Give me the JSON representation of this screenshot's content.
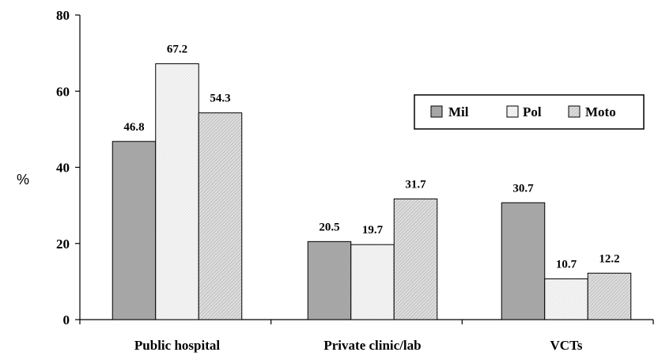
{
  "chart_data": {
    "type": "bar",
    "title": "",
    "xlabel": "",
    "ylabel": "%",
    "ylim": [
      0,
      80
    ],
    "yticks": [
      0,
      20,
      40,
      60,
      80
    ],
    "grid": false,
    "legend_position": "top-right",
    "categories": [
      "Public hospital",
      "Private clinic/lab",
      "VCTs"
    ],
    "series": [
      {
        "name": "Mil",
        "values": [
          46.8,
          20.5,
          30.7
        ],
        "color": "#a6a6a6",
        "pattern": "solid-gray"
      },
      {
        "name": "Pol",
        "values": [
          67.2,
          19.7,
          10.7
        ],
        "color": "#efefef",
        "pattern": "light-dotted"
      },
      {
        "name": "Moto",
        "values": [
          54.3,
          31.7,
          12.2
        ],
        "color": "#cfcfcf",
        "pattern": "hatched"
      }
    ],
    "data_labels": [
      [
        "46.8",
        "20.5",
        "30.7"
      ],
      [
        "67.2",
        "19.7",
        "10.7"
      ],
      [
        "54.3",
        "31.7",
        "12.2"
      ]
    ]
  }
}
